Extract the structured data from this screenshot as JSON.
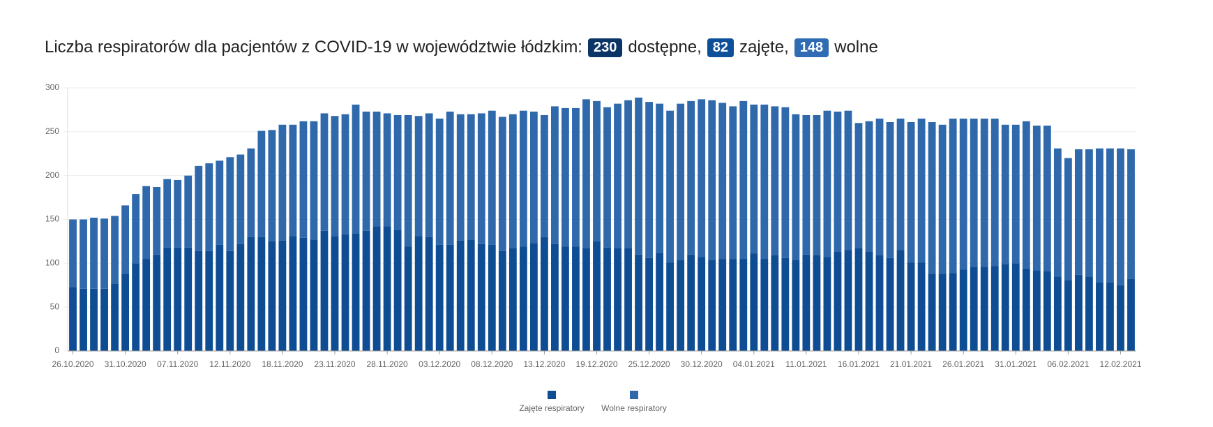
{
  "chart_data": {
    "type": "stacked_bar",
    "title": {
      "text": "Liczba respiratorów dla pacjentów z COVID-19 w województwie łódzkim:",
      "badges": [
        {
          "value": 230,
          "label": "dostępne,",
          "color": "#0b3566"
        },
        {
          "value": 82,
          "label": "zajęte,",
          "color": "#0e4f9a"
        },
        {
          "value": 148,
          "label": "wolne",
          "color": "#2f6cb3"
        }
      ]
    },
    "categories": [
      "26.10.2020",
      null,
      null,
      null,
      null,
      "31.10.2020",
      null,
      null,
      null,
      null,
      "07.11.2020",
      null,
      null,
      null,
      null,
      "12.11.2020",
      null,
      null,
      null,
      null,
      "18.11.2020",
      null,
      null,
      null,
      null,
      "23.11.2020",
      null,
      null,
      null,
      null,
      "28.11.2020",
      null,
      null,
      null,
      null,
      "03.12.2020",
      null,
      null,
      null,
      null,
      "08.12.2020",
      null,
      null,
      null,
      null,
      "13.12.2020",
      null,
      null,
      null,
      null,
      "19.12.2020",
      null,
      null,
      null,
      null,
      "25.12.2020",
      null,
      null,
      null,
      null,
      "30.12.2020",
      null,
      null,
      null,
      null,
      "04.01.2021",
      null,
      null,
      null,
      null,
      "11.01.2021",
      null,
      null,
      null,
      null,
      "16.01.2021",
      null,
      null,
      null,
      null,
      "21.01.2021",
      null,
      null,
      null,
      null,
      "26.01.2021",
      null,
      null,
      null,
      null,
      "31.01.2021",
      null,
      null,
      null,
      null,
      "06.02.2021",
      null,
      null,
      null,
      null,
      "12.02.2021",
      null
    ],
    "series": [
      {
        "name": "Zajęte respiratory",
        "color": "#0e4c93",
        "values": [
          73,
          71,
          71,
          71,
          77,
          88,
          100,
          105,
          110,
          118,
          118,
          118,
          114,
          114,
          121,
          114,
          122,
          130,
          130,
          125,
          126,
          131,
          129,
          127,
          137,
          131,
          133,
          134,
          137,
          142,
          142,
          138,
          119,
          131,
          130,
          121,
          121,
          126,
          127,
          122,
          121,
          114,
          117,
          119,
          123,
          130,
          122,
          119,
          119,
          117,
          125,
          118,
          117,
          117,
          110,
          106,
          112,
          101,
          104,
          110,
          107,
          104,
          105,
          105,
          105,
          111,
          105,
          109,
          106,
          104,
          110,
          109,
          107,
          113,
          115,
          117,
          113,
          109,
          106,
          115,
          101,
          101,
          88,
          88,
          89,
          93,
          96,
          96,
          97,
          99,
          100,
          94,
          92,
          91,
          85,
          81,
          87,
          85,
          78,
          78,
          75,
          82
        ]
      },
      {
        "name": "Wolne respiratory",
        "color": "#2f69ac",
        "values": [
          77,
          79,
          81,
          80,
          77,
          78,
          79,
          83,
          77,
          78,
          77,
          82,
          97,
          100,
          96,
          107,
          102,
          101,
          121,
          127,
          132,
          127,
          133,
          135,
          134,
          137,
          137,
          147,
          136,
          131,
          129,
          131,
          150,
          137,
          141,
          144,
          152,
          144,
          143,
          149,
          153,
          153,
          153,
          155,
          150,
          139,
          157,
          158,
          158,
          170,
          160,
          160,
          165,
          169,
          179,
          178,
          170,
          173,
          178,
          175,
          180,
          182,
          178,
          174,
          180,
          170,
          176,
          170,
          172,
          166,
          159,
          160,
          167,
          160,
          159,
          143,
          149,
          156,
          155,
          150,
          160,
          164,
          173,
          170,
          176,
          172,
          169,
          169,
          168,
          159,
          158,
          168,
          165,
          166,
          146,
          139,
          143,
          145,
          153,
          153,
          156,
          148
        ]
      }
    ],
    "ylim": [
      0,
      300
    ],
    "yticks": [
      0,
      50,
      100,
      150,
      200,
      250,
      300
    ],
    "grid": true
  }
}
